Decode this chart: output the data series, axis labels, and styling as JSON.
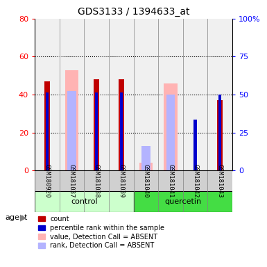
{
  "title": "GDS3133 / 1394633_at",
  "samples": [
    "GSM180920",
    "GSM181037",
    "GSM181038",
    "GSM181039",
    "GSM181040",
    "GSM181041",
    "GSM181042",
    "GSM181043"
  ],
  "groups": [
    "control",
    "control",
    "control",
    "control",
    "quercetin",
    "quercetin",
    "quercetin",
    "quercetin"
  ],
  "count_values": [
    47,
    null,
    48,
    48,
    null,
    null,
    null,
    37
  ],
  "rank_values": [
    41,
    null,
    41,
    41,
    null,
    null,
    27,
    40
  ],
  "absent_value_values": [
    null,
    53,
    null,
    null,
    4,
    46,
    null,
    null
  ],
  "absent_rank_values": [
    null,
    42,
    null,
    null,
    13,
    40,
    null,
    null
  ],
  "ylim_left": [
    0,
    80
  ],
  "ylim_right": [
    0,
    100
  ],
  "yticks_left": [
    0,
    20,
    40,
    60,
    80
  ],
  "yticks_right": [
    0,
    25,
    50,
    75,
    100
  ],
  "ytick_labels_left": [
    "0",
    "20",
    "40",
    "60",
    "80"
  ],
  "ytick_labels_right": [
    "0",
    "25",
    "50",
    "75",
    "100%"
  ],
  "count_color": "#c00000",
  "rank_color": "#0000cc",
  "absent_value_color": "#ffb3b3",
  "absent_rank_color": "#b3b3ff",
  "control_bg_light": "#ccffcc",
  "quercetin_bg_dark": "#44dd44",
  "dotted_grid_values": [
    20,
    40,
    60
  ],
  "legend_items": [
    {
      "label": "count",
      "color": "#c00000"
    },
    {
      "label": "percentile rank within the sample",
      "color": "#0000cc"
    },
    {
      "label": "value, Detection Call = ABSENT",
      "color": "#ffb3b3"
    },
    {
      "label": "rank, Detection Call = ABSENT",
      "color": "#b3b3ff"
    }
  ]
}
